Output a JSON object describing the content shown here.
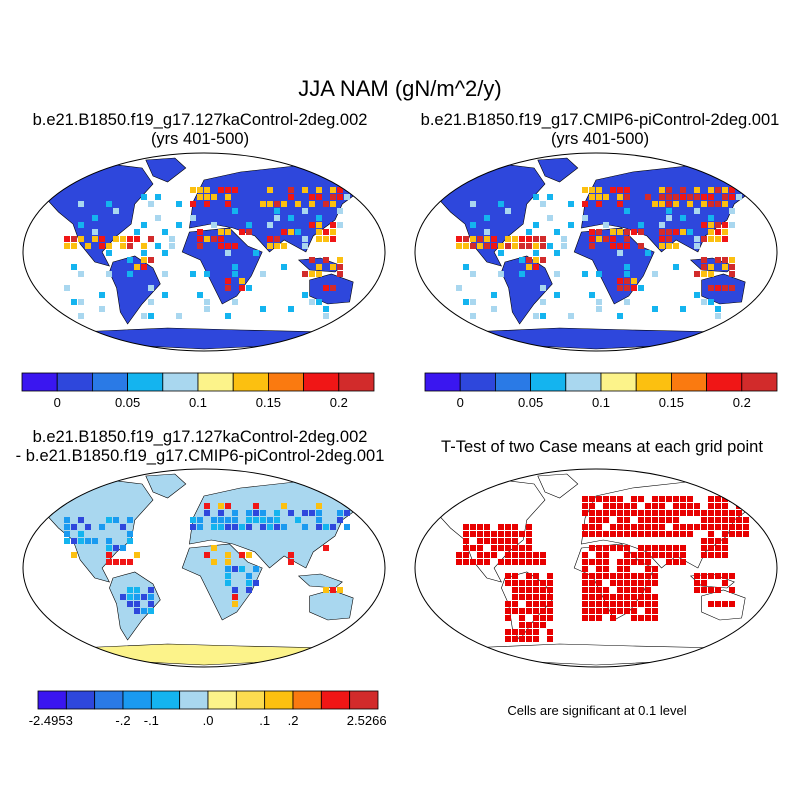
{
  "main_title": "JJA NAM (gN/m^2/y)",
  "panels": {
    "top_left": {
      "title_line1": "b.e21.B1850.f19_g17.127kaControl-2deg.002",
      "title_line2": "(yrs 401-500)"
    },
    "top_right": {
      "title_line1": "b.e21.B1850.f19_g17.CMIP6-piControl-2deg.001",
      "title_line2": "(yrs 401-500)"
    },
    "bottom_left": {
      "title_line1": "b.e21.B1850.f19_g17.127kaControl-2deg.002",
      "title_line2": "- b.e21.B1850.f19_g17.CMIP6-piControl-2deg.001"
    },
    "bottom_right": {
      "title": "T-Test of two Case means at each grid point",
      "note": "Cells are significant at 0.1 level"
    }
  },
  "colorbar_main": {
    "colors": [
      "#3a16f0",
      "#2e47dc",
      "#2a7ae6",
      "#14b4ef",
      "#a9d7ef",
      "#fcf38a",
      "#fcc010",
      "#fa7a10",
      "#f01616",
      "#d22b2b"
    ],
    "labels": [
      "0",
      "0.05",
      "0.1",
      "0.15",
      "0.2"
    ]
  },
  "colorbar_diff": {
    "colors": [
      "#3a16f0",
      "#2e47dc",
      "#2a7ae6",
      "#1a9af0",
      "#14b4ef",
      "#a9d7ef",
      "#fcf38a",
      "#fcdc50",
      "#fcc010",
      "#fa7a10",
      "#f01616",
      "#d22b2b"
    ],
    "labels": [
      "-2.4953",
      "-.2",
      "-.1",
      ".0",
      ".1",
      ".2",
      "2.5266"
    ]
  },
  "colors": {
    "land_low": "#2e47dc",
    "land_high": "#f01616",
    "diff_background": "#fcf38a",
    "significant": "#e80000",
    "map_outline": "#000000"
  }
}
